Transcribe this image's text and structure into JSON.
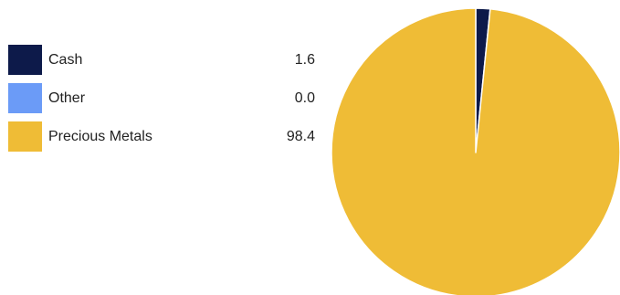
{
  "chart_data": {
    "type": "pie",
    "title": "",
    "categories": [
      "Cash",
      "Other",
      "Precious Metals"
    ],
    "values": [
      1.6,
      0.0,
      98.4
    ],
    "colors": [
      "#0d1a4a",
      "#6b9bf7",
      "#efbc36"
    ],
    "legend_position": "left",
    "start_angle": "top",
    "direction": "clockwise",
    "value_labels": [
      "1.6",
      "0.0",
      "98.4"
    ]
  }
}
